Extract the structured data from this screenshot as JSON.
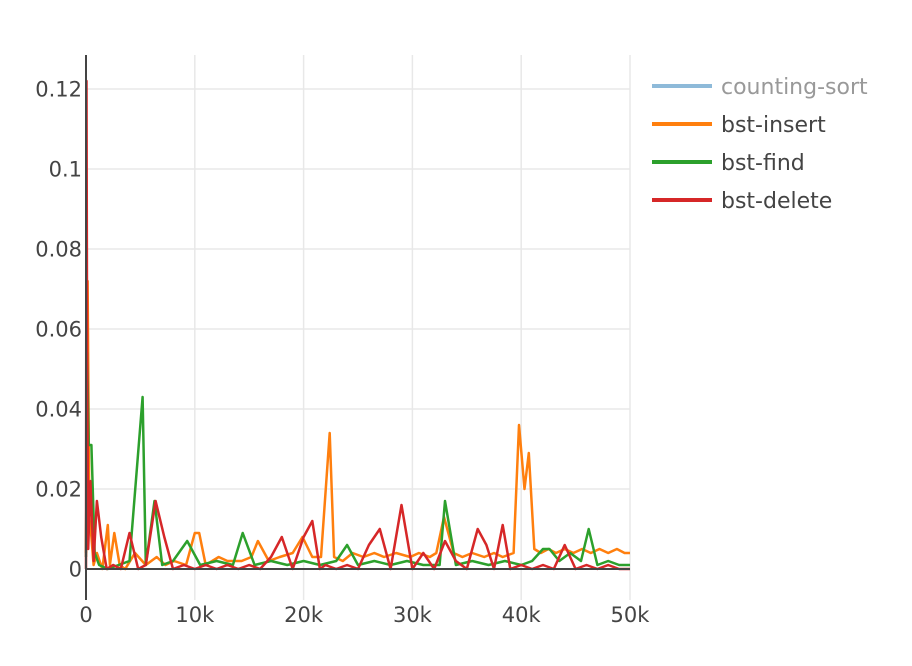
{
  "chart_data": {
    "type": "line",
    "title": "",
    "xlabel": "",
    "ylabel": "",
    "xlim": [
      0,
      50000
    ],
    "ylim": [
      -0.006,
      0.128
    ],
    "grid": true,
    "legend_position": "top-right",
    "x_ticks": [
      {
        "value": 0,
        "label": "0"
      },
      {
        "value": 10000,
        "label": "10k"
      },
      {
        "value": 20000,
        "label": "20k"
      },
      {
        "value": 30000,
        "label": "30k"
      },
      {
        "value": 40000,
        "label": "40k"
      },
      {
        "value": 50000,
        "label": "50k"
      }
    ],
    "y_ticks": [
      {
        "value": 0,
        "label": "0"
      },
      {
        "value": 0.02,
        "label": "0.02"
      },
      {
        "value": 0.04,
        "label": "0.04"
      },
      {
        "value": 0.06,
        "label": "0.06"
      },
      {
        "value": 0.08,
        "label": "0.08"
      },
      {
        "value": 0.1,
        "label": "0.1"
      },
      {
        "value": 0.12,
        "label": "0.12"
      }
    ],
    "series": [
      {
        "name": "counting-sort",
        "color": "#1f77b4",
        "visible": false,
        "x": [],
        "y": []
      },
      {
        "name": "bst-insert",
        "color": "#ff7f0e",
        "visible": true,
        "x": [
          0,
          150,
          300,
          500,
          700,
          1000,
          1500,
          2000,
          2200,
          2600,
          3100,
          3600,
          4500,
          5500,
          6500,
          7300,
          8100,
          9200,
          10000,
          10400,
          11000,
          12200,
          13000,
          14300,
          15200,
          15800,
          16800,
          17800,
          19000,
          19900,
          20800,
          21600,
          22400,
          22800,
          23600,
          24500,
          25500,
          26500,
          27400,
          28500,
          29800,
          30600,
          31600,
          32200,
          32900,
          33800,
          34600,
          35500,
          36600,
          37500,
          38300,
          39300,
          39800,
          40300,
          40700,
          41200,
          41800,
          42500,
          43200,
          44000,
          44800,
          45600,
          46400,
          47200,
          48000,
          48800,
          49500,
          50000
        ],
        "y": [
          0.004,
          0.072,
          0.013,
          0.008,
          0.001,
          0.004,
          0.0,
          0.011,
          0.001,
          0.009,
          0.001,
          0.0,
          0.004,
          0.001,
          0.003,
          0.001,
          0.002,
          0.001,
          0.009,
          0.009,
          0.001,
          0.003,
          0.002,
          0.002,
          0.003,
          0.007,
          0.002,
          0.003,
          0.004,
          0.008,
          0.003,
          0.003,
          0.034,
          0.003,
          0.002,
          0.004,
          0.003,
          0.004,
          0.003,
          0.004,
          0.003,
          0.004,
          0.003,
          0.004,
          0.013,
          0.004,
          0.003,
          0.004,
          0.003,
          0.004,
          0.003,
          0.004,
          0.036,
          0.02,
          0.029,
          0.005,
          0.004,
          0.005,
          0.004,
          0.005,
          0.004,
          0.005,
          0.004,
          0.005,
          0.004,
          0.005,
          0.004,
          0.004
        ]
      },
      {
        "name": "bst-find",
        "color": "#2ca02c",
        "visible": true,
        "x": [
          0,
          100,
          250,
          500,
          800,
          1200,
          2000,
          3000,
          4000,
          5200,
          5500,
          6300,
          7000,
          8000,
          9300,
          10500,
          12000,
          13500,
          14400,
          15500,
          17000,
          18500,
          20000,
          21500,
          23000,
          24000,
          25000,
          26500,
          28000,
          29500,
          31000,
          32500,
          33000,
          34000,
          35500,
          37000,
          38500,
          40000,
          41000,
          42000,
          42600,
          43500,
          44500,
          45500,
          46200,
          47000,
          48000,
          49000,
          50000
        ],
        "y": [
          0.003,
          0.054,
          0.031,
          0.031,
          0.004,
          0.001,
          0.0,
          0.001,
          0.002,
          0.043,
          0.001,
          0.017,
          0.001,
          0.002,
          0.007,
          0.001,
          0.002,
          0.001,
          0.009,
          0.001,
          0.002,
          0.001,
          0.002,
          0.001,
          0.002,
          0.006,
          0.001,
          0.002,
          0.001,
          0.002,
          0.001,
          0.001,
          0.017,
          0.001,
          0.002,
          0.001,
          0.002,
          0.001,
          0.002,
          0.005,
          0.005,
          0.002,
          0.004,
          0.002,
          0.01,
          0.001,
          0.002,
          0.001,
          0.001
        ]
      },
      {
        "name": "bst-delete",
        "color": "#d62728",
        "visible": true,
        "x": [
          0,
          50,
          100,
          200,
          400,
          700,
          1000,
          1400,
          1900,
          2500,
          3200,
          4000,
          4800,
          5500,
          6400,
          7200,
          8000,
          9000,
          10000,
          11000,
          12000,
          13000,
          14000,
          15000,
          16000,
          17000,
          18000,
          19000,
          20000,
          20800,
          21500,
          22000,
          23000,
          24000,
          25000,
          26000,
          27000,
          28000,
          29000,
          30000,
          31000,
          32000,
          33000,
          34000,
          35000,
          36000,
          36800,
          37500,
          38300,
          39000,
          40000,
          41000,
          42000,
          43000,
          44000,
          45000,
          46000,
          47000,
          48000,
          49000,
          50000
        ],
        "y": [
          0.0,
          0.122,
          0.054,
          0.005,
          0.022,
          0.002,
          0.017,
          0.008,
          0.0,
          0.001,
          0.0,
          0.009,
          0.0,
          0.001,
          0.017,
          0.008,
          0.0,
          0.001,
          0.0,
          0.001,
          0.0,
          0.001,
          0.0,
          0.001,
          0.0,
          0.003,
          0.008,
          0.0,
          0.008,
          0.012,
          0.0,
          0.001,
          0.0,
          0.001,
          0.0,
          0.006,
          0.01,
          0.0,
          0.016,
          0.0,
          0.004,
          0.0,
          0.007,
          0.002,
          0.0,
          0.01,
          0.006,
          0.0,
          0.011,
          0.0,
          0.001,
          0.0,
          0.001,
          0.0,
          0.006,
          0.0,
          0.001,
          0.0,
          0.001,
          0.0,
          0.0
        ]
      }
    ]
  }
}
